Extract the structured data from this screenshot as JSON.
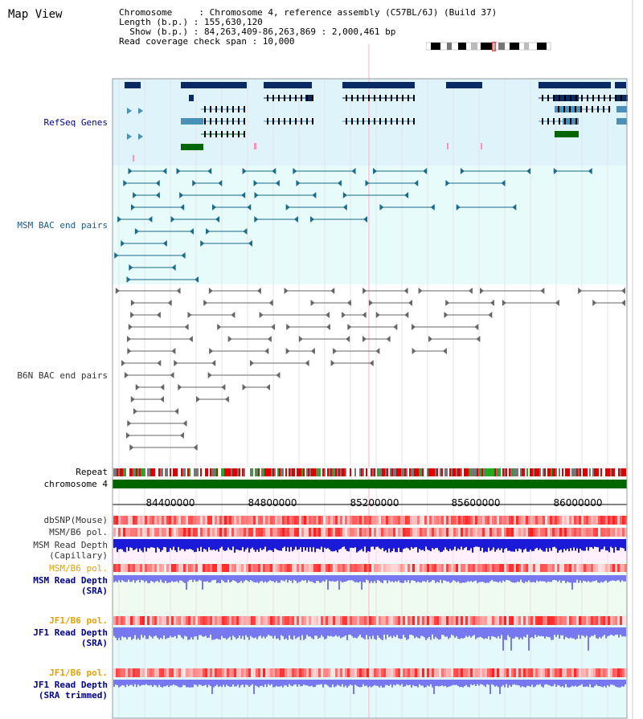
{
  "title": "Map View",
  "header": {
    "line1": "Chromosome     : Chromosome 4, reference assembly (C57BL/6J) (Build 37)",
    "line2": "Length (b.p.) : 155,630,120",
    "line3": "  Show (b.p.) : 84,263,409-86,263,869 : 2,000,461 bp",
    "line4": "Read coverage check span : 10,000"
  },
  "tracks": {
    "refseq": "RefSeq Genes",
    "msm_bac": "MSM BAC end pairs",
    "b6n_bac": "B6N BAC end pairs",
    "repeat": "Repeat",
    "chromosome": "chromosome 4",
    "dbsnp": "dbSNP(Mouse)",
    "msm_b6_pol": "MSM/B6 pol.",
    "msm_depth_cap_1": "MSM Read Depth",
    "msm_depth_cap_2": "(Capillary)",
    "msm_b6_pol_2": "MSM/B6 pol.",
    "msm_depth_sra_1": "MSM Read Depth",
    "msm_depth_sra_2": "(SRA)",
    "jf1_b6_pol": "JF1/B6 pol.",
    "jf1_depth_sra_1": "JF1 Read Depth",
    "jf1_depth_sra_2": "(SRA)",
    "jf1_b6_pol_2": "JF1/B6 pol.",
    "jf1_depth_trim_1": "JF1 Read Depth",
    "jf1_depth_trim_2": "(SRA trimmed)"
  },
  "axis": {
    "ticks": [
      "84400000",
      "84800000",
      "85200000",
      "85600000",
      "86000000"
    ]
  },
  "colors": {
    "refseq_bg": "#dff3fb",
    "msm_bg": "#e8fbfb",
    "gene_dark": "#0a2a66",
    "gene_teal": "#4a90b8",
    "gene_green": "#006600",
    "msm_pair": "#1a6a8a",
    "b6n_pair": "#666666",
    "chromosome": "#006600",
    "sra_bg": "#eefbf0",
    "jf1_bg": "#e4fafa",
    "depth_dark": "#1a1ad8",
    "depth_light": "#7777f0",
    "pol_red": "#f05050",
    "label_blue": "#00008b",
    "label_teal": "#1a5a8a",
    "label_orange": "#e6a000"
  }
}
